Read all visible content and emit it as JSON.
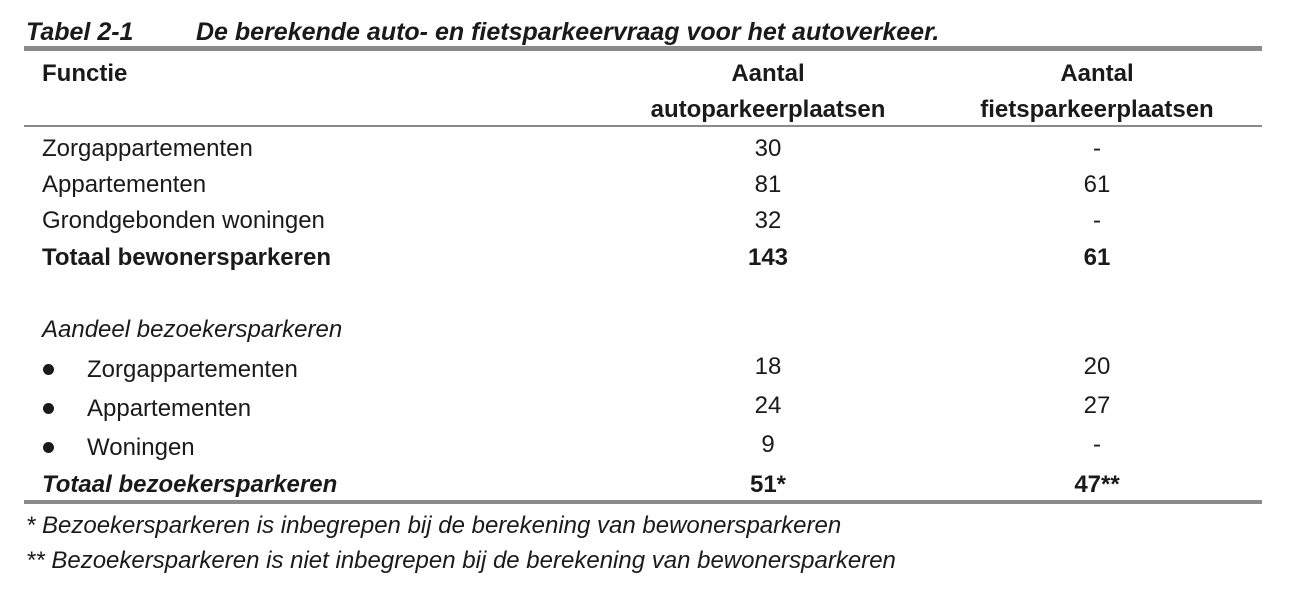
{
  "caption": {
    "number": "Tabel 2-1",
    "title": "De berekende auto- en fietsparkeervraag voor het autoverkeer."
  },
  "header": {
    "col1": "Functie",
    "col2_line1": "Aantal",
    "col2_line2": "autoparkeerplaatsen",
    "col3_line1": "Aantal",
    "col3_line2": "fietsparkeerplaatsen"
  },
  "residents": {
    "rows": [
      {
        "label": "Zorgappartementen",
        "auto": "30",
        "fiets": "-"
      },
      {
        "label": "Appartementen",
        "auto": "81",
        "fiets": "61"
      },
      {
        "label": "Grondgebonden woningen",
        "auto": "32",
        "fiets": "-"
      }
    ],
    "total": {
      "label": "Totaal bewonersparkeren",
      "auto": "143",
      "fiets": "61"
    }
  },
  "visitors": {
    "heading": "Aandeel bezoekersparkeren",
    "rows": [
      {
        "label": "Zorgappartementen",
        "auto": "18",
        "fiets": "20"
      },
      {
        "label": "Appartementen",
        "auto": "24",
        "fiets": "27"
      },
      {
        "label": "Woningen",
        "auto": "9",
        "fiets": "-"
      }
    ],
    "total": {
      "label": "Totaal bezoekersparkeren",
      "auto": "51*",
      "fiets": "47**"
    }
  },
  "footnotes": [
    "* Bezoekersparkeren is inbegrepen bij de berekening van bewonersparkeren",
    "** Bezoekersparkeren is niet inbegrepen bij de berekening van bewonersparkeren"
  ]
}
